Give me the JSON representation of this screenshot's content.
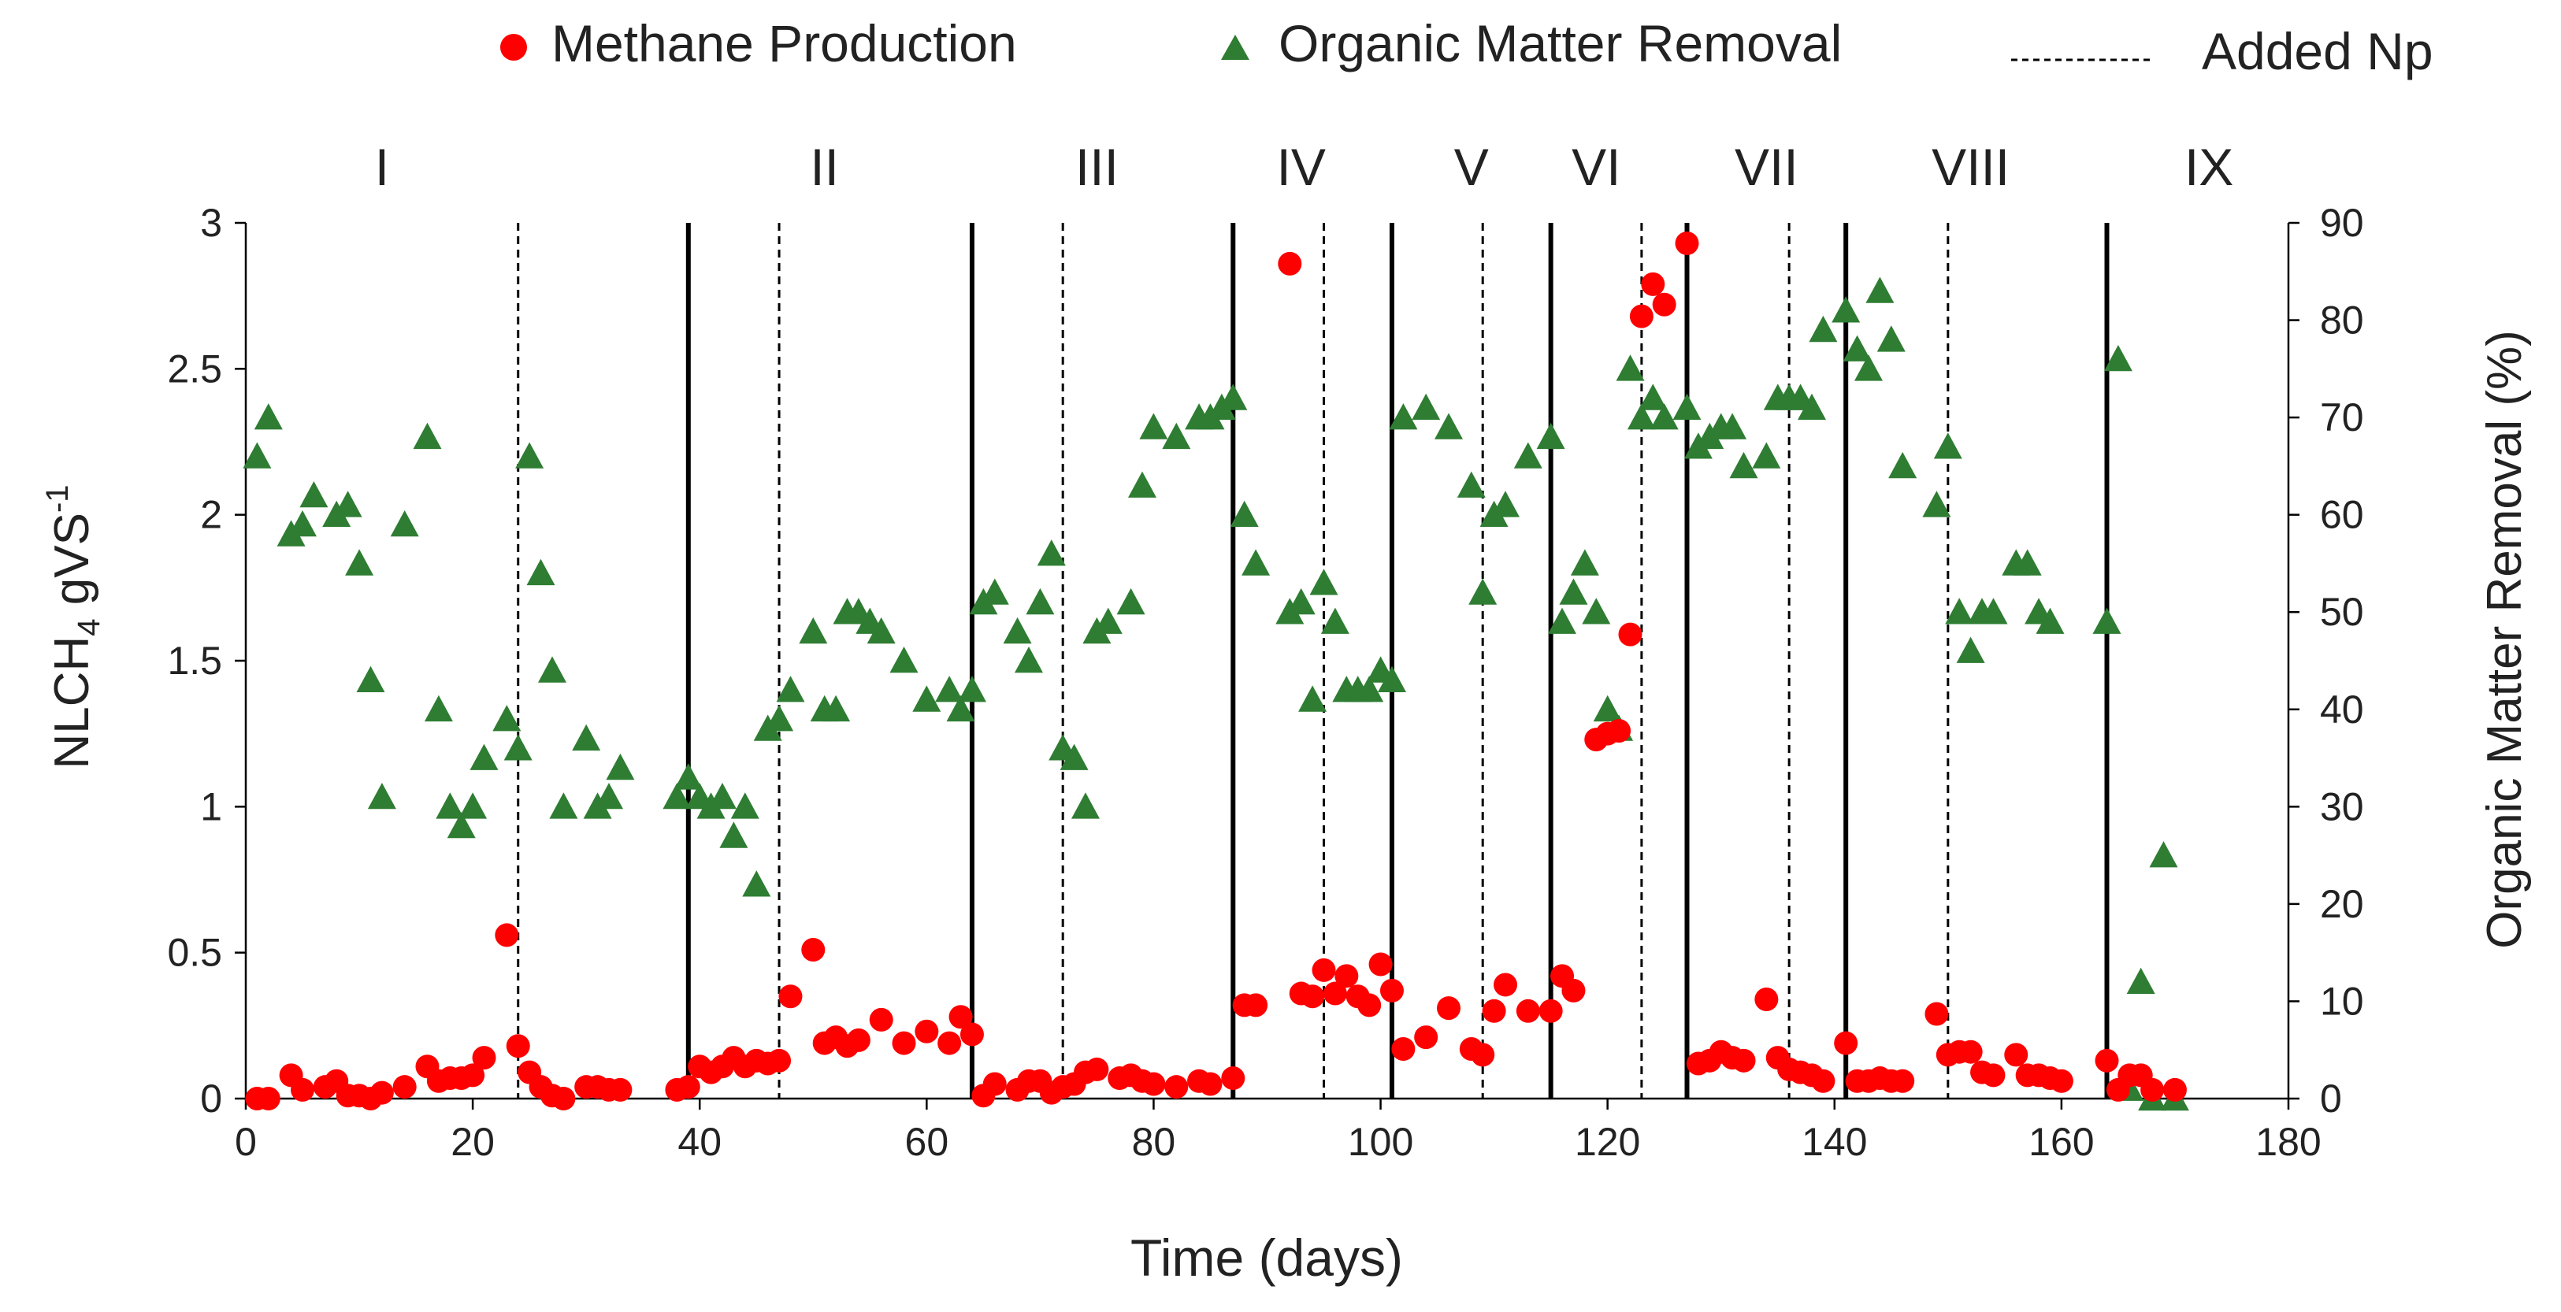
{
  "chart_data": {
    "type": "scatter",
    "title": "",
    "xlabel": "Time (days)",
    "ylabel": {
      "main": "NLCH",
      "sub": "4",
      "mid": " gVS",
      "sup": "-1"
    },
    "y2label": "Organic Matter Removal (%)",
    "xlim": [
      0,
      180
    ],
    "ylim": [
      0,
      3
    ],
    "y2lim": [
      0,
      90
    ],
    "x_ticks": [
      0,
      20,
      40,
      60,
      80,
      100,
      120,
      140,
      160,
      180
    ],
    "x_tick_labels": [
      "0",
      "20",
      "40",
      "60",
      "80",
      "100",
      "120",
      "140",
      "160",
      "180"
    ],
    "y_ticks": [
      0,
      0.5,
      1,
      1.5,
      2,
      2.5,
      3
    ],
    "y_tick_labels": [
      "0",
      "0.5",
      "1",
      "1.5",
      "2",
      "2.5",
      "3"
    ],
    "y2_ticks": [
      0,
      10,
      20,
      30,
      40,
      50,
      60,
      70,
      80,
      90
    ],
    "y2_tick_labels": [
      "0",
      "10",
      "20",
      "30",
      "40",
      "50",
      "60",
      "70",
      "80",
      "90"
    ],
    "grid": false,
    "legend_position": "top",
    "legend": [
      {
        "name": "Methane Production",
        "marker": "circle",
        "color": "#ff0000"
      },
      {
        "name": "Organic Matter Removal",
        "marker": "triangle",
        "color": "#2e7d32"
      },
      {
        "name": "Added Np",
        "marker": "dashed-line",
        "color": "#000000"
      }
    ],
    "phases": [
      {
        "label": "I",
        "x": 12
      },
      {
        "label": "II",
        "x": 51
      },
      {
        "label": "III",
        "x": 75
      },
      {
        "label": "IV",
        "x": 93
      },
      {
        "label": "V",
        "x": 108
      },
      {
        "label": "VI",
        "x": 119
      },
      {
        "label": "VII",
        "x": 134
      },
      {
        "label": "VIII",
        "x": 152
      },
      {
        "label": "IX",
        "x": 173
      }
    ],
    "phase_boundaries": [
      39,
      64,
      87,
      101,
      115,
      127,
      141,
      164
    ],
    "added_np_days": [
      24,
      47,
      72,
      95,
      109,
      123,
      136,
      150
    ],
    "series": [
      {
        "name": "Methane Production",
        "axis": "left",
        "color": "#ff0000",
        "marker": "circle",
        "x": [
          1,
          2,
          4,
          5,
          7,
          8,
          9,
          10,
          11,
          12,
          14,
          16,
          17,
          18,
          19,
          20,
          21,
          23,
          24,
          25,
          26,
          27,
          28,
          30,
          31,
          32,
          33,
          38,
          39,
          40,
          41,
          42,
          43,
          44,
          45,
          46,
          47,
          48,
          50,
          51,
          52,
          53,
          54,
          56,
          58,
          60,
          62,
          63,
          64,
          65,
          66,
          68,
          69,
          70,
          71,
          72,
          73,
          74,
          75,
          77,
          78,
          79,
          80,
          82,
          84,
          85,
          87,
          88,
          89,
          92,
          93,
          94,
          95,
          96,
          97,
          98,
          99,
          100,
          101,
          102,
          104,
          106,
          108,
          109,
          110,
          111,
          113,
          115,
          116,
          117,
          119,
          120,
          121,
          122,
          123,
          124,
          125,
          127,
          128,
          129,
          130,
          131,
          132,
          134,
          135,
          136,
          137,
          138,
          139,
          141,
          142,
          143,
          144,
          145,
          146,
          149,
          150,
          151,
          152,
          153,
          154,
          156,
          157,
          158,
          159,
          160,
          164,
          165,
          166,
          167,
          168,
          170
        ],
        "values": [
          0.0,
          0.0,
          0.08,
          0.03,
          0.04,
          0.06,
          0.01,
          0.01,
          0.0,
          0.02,
          0.04,
          0.11,
          0.06,
          0.07,
          0.07,
          0.08,
          0.14,
          0.56,
          0.18,
          0.09,
          0.04,
          0.01,
          0.0,
          0.04,
          0.04,
          0.03,
          0.03,
          0.03,
          0.04,
          0.11,
          0.09,
          0.11,
          0.14,
          0.11,
          0.13,
          0.12,
          0.13,
          0.35,
          0.51,
          0.19,
          0.21,
          0.18,
          0.2,
          0.27,
          0.19,
          0.23,
          0.19,
          0.28,
          0.22,
          0.01,
          0.05,
          0.03,
          0.06,
          0.06,
          0.02,
          0.04,
          0.05,
          0.09,
          0.1,
          0.07,
          0.08,
          0.06,
          0.05,
          0.04,
          0.06,
          0.05,
          0.07,
          0.32,
          0.32,
          2.86,
          0.36,
          0.35,
          0.44,
          0.36,
          0.42,
          0.35,
          0.32,
          0.46,
          0.37,
          0.17,
          0.21,
          0.31,
          0.17,
          0.15,
          0.3,
          0.39,
          0.3,
          0.3,
          0.42,
          0.37,
          1.23,
          1.25,
          1.26,
          1.59,
          2.68,
          2.79,
          2.72,
          2.93,
          0.12,
          0.13,
          0.16,
          0.14,
          0.13,
          0.34,
          0.14,
          0.1,
          0.09,
          0.08,
          0.06,
          0.19,
          0.06,
          0.06,
          0.07,
          0.06,
          0.06,
          0.29,
          0.15,
          0.16,
          0.16,
          0.09,
          0.08,
          0.15,
          0.08,
          0.08,
          0.07,
          0.06,
          0.13,
          0.03,
          0.08,
          0.08,
          0.03,
          0.03
        ]
      },
      {
        "name": "Organic Matter Removal",
        "axis": "right",
        "color": "#2e7d32",
        "marker": "triangle",
        "x": [
          1,
          2,
          4,
          5,
          6,
          8,
          9,
          10,
          11,
          12,
          14,
          16,
          17,
          18,
          19,
          20,
          21,
          23,
          24,
          25,
          26,
          27,
          28,
          30,
          31,
          32,
          33,
          38,
          39,
          40,
          41,
          42,
          43,
          44,
          45,
          46,
          47,
          48,
          50,
          51,
          52,
          53,
          54,
          55,
          56,
          58,
          60,
          62,
          63,
          64,
          65,
          66,
          68,
          69,
          70,
          71,
          72,
          73,
          74,
          75,
          76,
          78,
          79,
          80,
          82,
          84,
          85,
          86,
          87,
          88,
          89,
          92,
          93,
          94,
          95,
          96,
          97,
          98,
          99,
          100,
          101,
          102,
          104,
          106,
          108,
          109,
          110,
          111,
          113,
          115,
          116,
          117,
          118,
          119,
          120,
          121,
          122,
          123,
          124,
          125,
          127,
          128,
          129,
          130,
          131,
          132,
          134,
          135,
          136,
          137,
          138,
          139,
          141,
          142,
          143,
          144,
          145,
          146,
          149,
          150,
          151,
          152,
          153,
          154,
          156,
          157,
          158,
          159,
          164,
          165,
          166,
          167,
          168,
          169,
          170
        ],
        "values": [
          66,
          70,
          58,
          59,
          62,
          60,
          61,
          55,
          43,
          31,
          59,
          68,
          40,
          30,
          28,
          30,
          35,
          39,
          36,
          66,
          54,
          44,
          30,
          37,
          30,
          31,
          34,
          31,
          33,
          31,
          30,
          31,
          27,
          30,
          22,
          38,
          39,
          42,
          48,
          40,
          40,
          50,
          50,
          49,
          48,
          45,
          41,
          42,
          40,
          42,
          51,
          52,
          48,
          45,
          51,
          56,
          36,
          35,
          30,
          48,
          49,
          51,
          63,
          69,
          68,
          70,
          70,
          71,
          72,
          60,
          55,
          50,
          51,
          41,
          53,
          49,
          42,
          42,
          42,
          44,
          43,
          70,
          71,
          69,
          63,
          52,
          60,
          61,
          66,
          68,
          49,
          52,
          55,
          50,
          40,
          38,
          75,
          70,
          72,
          70,
          71,
          67,
          68,
          69,
          69,
          65,
          66,
          72,
          72,
          72,
          71,
          79,
          81,
          77,
          75,
          83,
          78,
          65,
          61,
          67,
          50,
          46,
          50,
          50,
          55,
          55,
          50,
          49,
          49,
          76,
          1,
          12,
          0,
          25,
          0
        ]
      }
    ]
  }
}
